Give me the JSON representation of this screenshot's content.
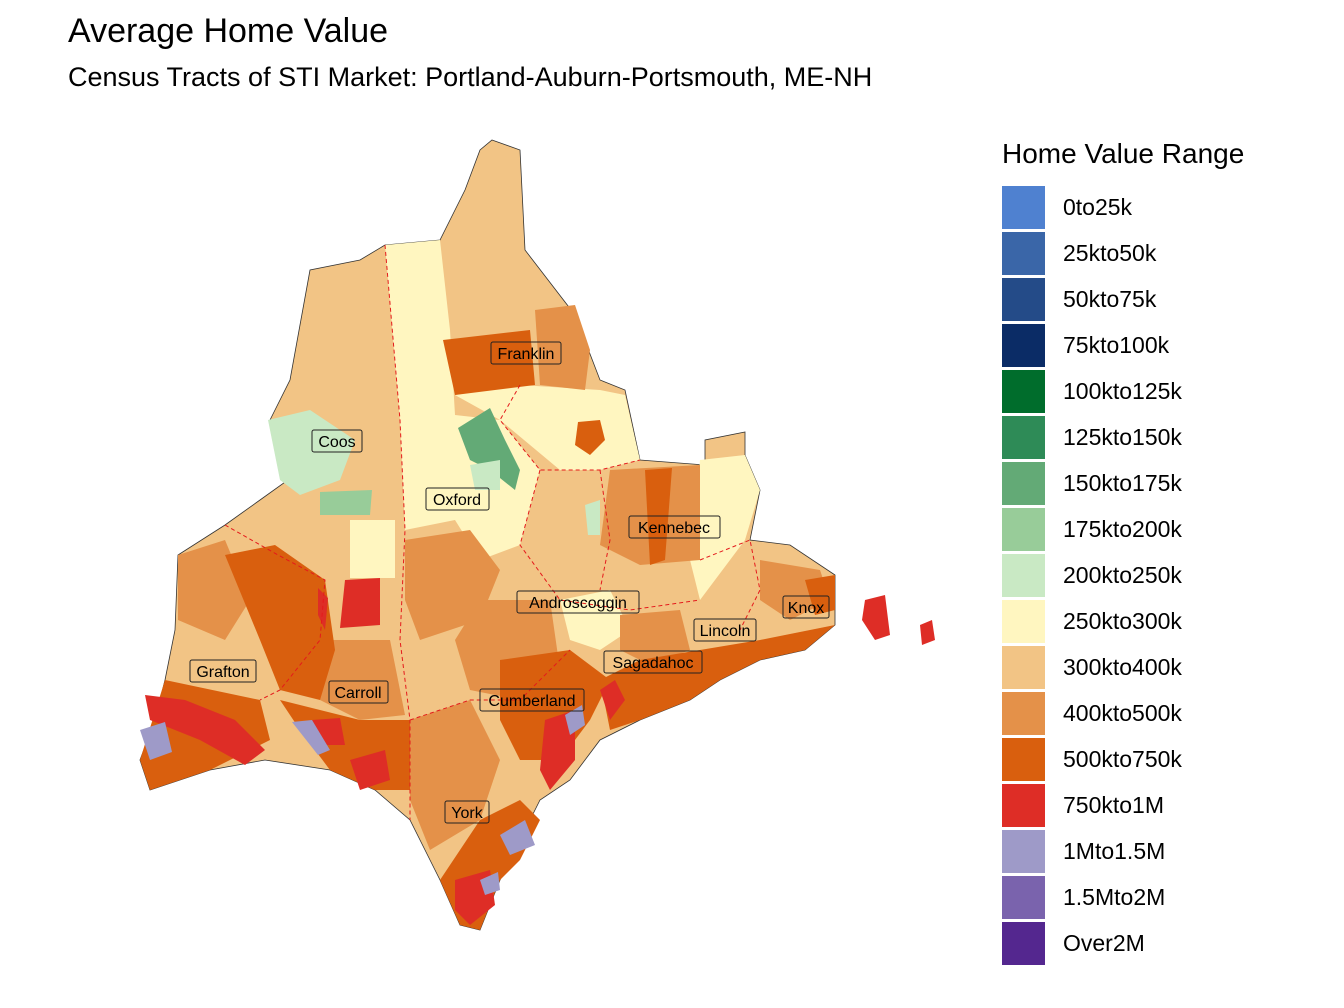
{
  "title": "Average Home Value",
  "subtitle": "Census Tracts of STI Market: Portland-Auburn-Portsmouth, ME-NH",
  "legend": {
    "title": "Home Value Range",
    "items": [
      {
        "label": "0to25k",
        "color": "#4f81d0"
      },
      {
        "label": "25kto50k",
        "color": "#3a66a8"
      },
      {
        "label": "50kto75k",
        "color": "#244b88"
      },
      {
        "label": "75kto100k",
        "color": "#0b2c66"
      },
      {
        "label": "100kto125k",
        "color": "#006d2c"
      },
      {
        "label": "125kto150k",
        "color": "#2e8b57"
      },
      {
        "label": "150kto175k",
        "color": "#63aa76"
      },
      {
        "label": "175kto200k",
        "color": "#98cc99"
      },
      {
        "label": "200kto250k",
        "color": "#c9e9c4"
      },
      {
        "label": "250kto300k",
        "color": "#fff6c0"
      },
      {
        "label": "300kto400k",
        "color": "#f2c485"
      },
      {
        "label": "400kto500k",
        "color": "#e49149"
      },
      {
        "label": "500kto750k",
        "color": "#d95f0e"
      },
      {
        "label": "750kto1M",
        "color": "#de2d26"
      },
      {
        "label": "1Mto1.5M",
        "color": "#9e9ac8"
      },
      {
        "label": "1.5Mto2M",
        "color": "#7a63ad"
      },
      {
        "label": "Over2M",
        "color": "#54278f"
      }
    ]
  },
  "counties": [
    {
      "name": "Coos"
    },
    {
      "name": "Franklin"
    },
    {
      "name": "Oxford"
    },
    {
      "name": "Kennebec"
    },
    {
      "name": "Androscoggin"
    },
    {
      "name": "Knox"
    },
    {
      "name": "Lincoln"
    },
    {
      "name": "Grafton"
    },
    {
      "name": "Sagadahoc"
    },
    {
      "name": "Carroll"
    },
    {
      "name": "Cumberland"
    },
    {
      "name": "York"
    }
  ]
}
